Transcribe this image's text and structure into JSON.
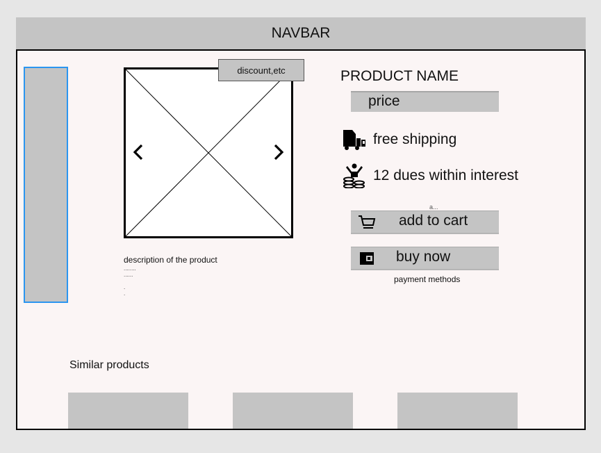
{
  "navbar": {
    "title": "NAVBAR"
  },
  "gallery": {
    "badge": "discount,etc"
  },
  "description": {
    "text": "description of the product",
    "lines": [
      "........",
      "......",
      ".",
      "."
    ]
  },
  "product": {
    "name": "PRODUCT NAME",
    "price": "price",
    "shipping": "free shipping",
    "installments": "12 dues within interest"
  },
  "actions": {
    "hint": "a...",
    "add_to_cart": "add to cart",
    "buy_now": "buy now",
    "payment_methods": "payment methods"
  },
  "similar": {
    "title": "Similar products"
  },
  "icons": {
    "shipping": "truck-icon",
    "installments": "coins-person-icon",
    "cart": "cart-icon",
    "wallet": "wallet-icon",
    "prev": "chevron-left-icon",
    "next": "chevron-right-icon"
  },
  "colors": {
    "placeholder": "#c4c4c4",
    "sidebar_border": "#2b95f0",
    "page_bg": "#fbf5f5"
  }
}
